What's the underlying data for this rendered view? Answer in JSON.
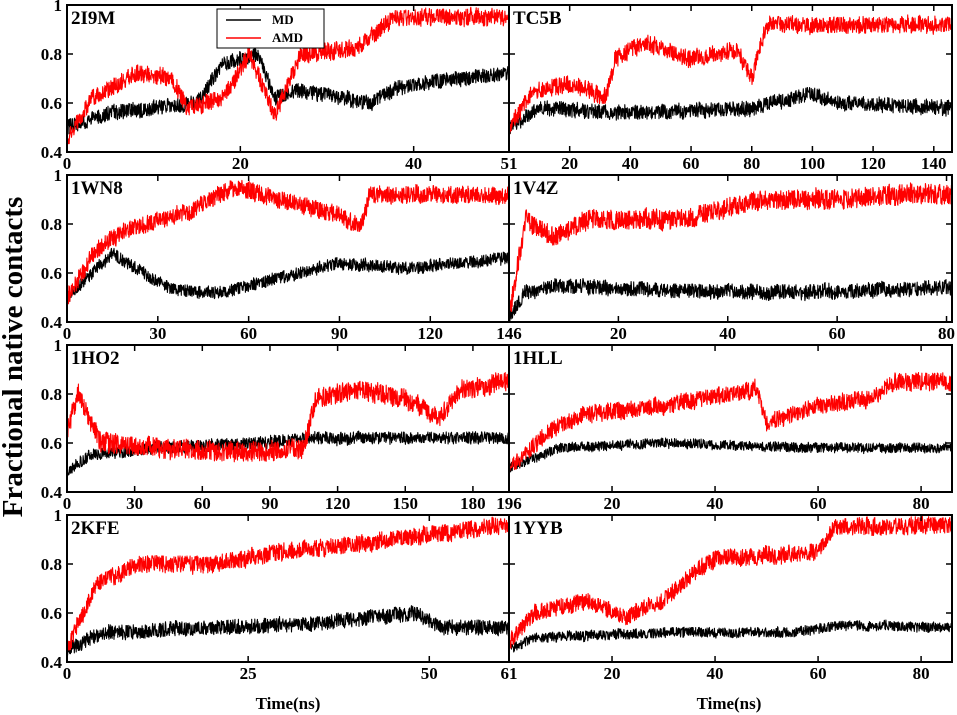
{
  "figure": {
    "ylabel": "Fractional native contacts",
    "xlabel": "Time(ns)",
    "legend": [
      {
        "name": "MD",
        "color": "#000000"
      },
      {
        "name": "AMD",
        "color": "#ff0000"
      }
    ]
  },
  "chart_data": [
    {
      "type": "line",
      "title": "2I9M",
      "xlabel": "",
      "ylabel": "",
      "xlim": [
        0,
        51
      ],
      "ylim": [
        0.4,
        1.0
      ],
      "x_ticks": [
        0,
        20,
        40,
        51
      ],
      "y_ticks": [
        0.4,
        0.6,
        0.8,
        1
      ],
      "x_tick_labels": [
        "0",
        "20",
        "40",
        "51"
      ],
      "y_tick_labels": [
        "0.4",
        "0.6",
        "0.8",
        "1"
      ],
      "legend_placement": "top",
      "series": [
        {
          "name": "MD",
          "color": "#000000",
          "noise": 0.03,
          "knots": [
            [
              0,
              0.5
            ],
            [
              5,
              0.56
            ],
            [
              10,
              0.58
            ],
            [
              15,
              0.6
            ],
            [
              18,
              0.76
            ],
            [
              22,
              0.8
            ],
            [
              24,
              0.62
            ],
            [
              27,
              0.65
            ],
            [
              35,
              0.6
            ],
            [
              38,
              0.66
            ],
            [
              45,
              0.7
            ],
            [
              51,
              0.72
            ]
          ]
        },
        {
          "name": "AMD",
          "color": "#ff0000",
          "noise": 0.035,
          "knots": [
            [
              0,
              0.45
            ],
            [
              3,
              0.62
            ],
            [
              8,
              0.72
            ],
            [
              12,
              0.7
            ],
            [
              14,
              0.58
            ],
            [
              18,
              0.62
            ],
            [
              21,
              0.8
            ],
            [
              24,
              0.55
            ],
            [
              27,
              0.8
            ],
            [
              33,
              0.82
            ],
            [
              38,
              0.95
            ],
            [
              45,
              0.95
            ],
            [
              51,
              0.95
            ]
          ]
        }
      ]
    },
    {
      "type": "line",
      "title": "TC5B",
      "xlabel": "",
      "ylabel": "",
      "xlim": [
        0,
        146
      ],
      "ylim": [
        0.4,
        1.0
      ],
      "x_ticks": [
        0,
        20,
        40,
        60,
        80,
        100,
        120,
        140
      ],
      "y_ticks": [
        0.4,
        0.6,
        0.8,
        1
      ],
      "x_tick_labels": [
        "",
        "20",
        "40",
        "60",
        "80",
        "100",
        "120",
        "140"
      ],
      "y_tick_labels": [
        "",
        "",
        "",
        ""
      ],
      "series": [
        {
          "name": "MD",
          "color": "#000000",
          "noise": 0.03,
          "knots": [
            [
              0,
              0.5
            ],
            [
              10,
              0.58
            ],
            [
              40,
              0.56
            ],
            [
              80,
              0.58
            ],
            [
              100,
              0.64
            ],
            [
              110,
              0.6
            ],
            [
              146,
              0.58
            ]
          ]
        },
        {
          "name": "AMD",
          "color": "#ff0000",
          "noise": 0.035,
          "knots": [
            [
              0,
              0.5
            ],
            [
              8,
              0.65
            ],
            [
              20,
              0.68
            ],
            [
              32,
              0.62
            ],
            [
              35,
              0.78
            ],
            [
              45,
              0.85
            ],
            [
              60,
              0.78
            ],
            [
              75,
              0.82
            ],
            [
              80,
              0.7
            ],
            [
              85,
              0.92
            ],
            [
              110,
              0.92
            ],
            [
              146,
              0.92
            ]
          ]
        }
      ]
    },
    {
      "type": "line",
      "title": "1WN8",
      "xlabel": "",
      "ylabel": "",
      "xlim": [
        0,
        146
      ],
      "ylim": [
        0.4,
        1.0
      ],
      "x_ticks": [
        0,
        30,
        60,
        90,
        120,
        146
      ],
      "y_ticks": [
        0.4,
        0.6,
        0.8,
        1
      ],
      "x_tick_labels": [
        "0",
        "30",
        "60",
        "90",
        "120",
        "146"
      ],
      "y_tick_labels": [
        "0.4",
        "0.6",
        "0.8",
        "1"
      ],
      "series": [
        {
          "name": "MD",
          "color": "#000000",
          "noise": 0.025,
          "knots": [
            [
              0,
              0.5
            ],
            [
              15,
              0.68
            ],
            [
              25,
              0.6
            ],
            [
              35,
              0.53
            ],
            [
              50,
              0.52
            ],
            [
              70,
              0.58
            ],
            [
              90,
              0.64
            ],
            [
              110,
              0.62
            ],
            [
              130,
              0.64
            ],
            [
              146,
              0.66
            ]
          ]
        },
        {
          "name": "AMD",
          "color": "#ff0000",
          "noise": 0.035,
          "knots": [
            [
              0,
              0.5
            ],
            [
              10,
              0.7
            ],
            [
              20,
              0.78
            ],
            [
              40,
              0.85
            ],
            [
              55,
              0.95
            ],
            [
              70,
              0.9
            ],
            [
              90,
              0.84
            ],
            [
              97,
              0.78
            ],
            [
              100,
              0.92
            ],
            [
              120,
              0.92
            ],
            [
              146,
              0.92
            ]
          ]
        }
      ]
    },
    {
      "type": "line",
      "title": "1V4Z",
      "xlabel": "",
      "ylabel": "",
      "xlim": [
        0,
        81
      ],
      "ylim": [
        0.4,
        1.0
      ],
      "x_ticks": [
        0,
        20,
        40,
        60,
        80
      ],
      "y_ticks": [
        0.4,
        0.6,
        0.8,
        1
      ],
      "x_tick_labels": [
        "",
        "20",
        "40",
        "60",
        "80"
      ],
      "y_tick_labels": [
        "",
        "",
        "",
        ""
      ],
      "series": [
        {
          "name": "MD",
          "color": "#000000",
          "noise": 0.03,
          "knots": [
            [
              0,
              0.42
            ],
            [
              3,
              0.52
            ],
            [
              10,
              0.55
            ],
            [
              30,
              0.53
            ],
            [
              50,
              0.52
            ],
            [
              81,
              0.54
            ]
          ]
        },
        {
          "name": "AMD",
          "color": "#ff0000",
          "noise": 0.04,
          "knots": [
            [
              0,
              0.42
            ],
            [
              3,
              0.82
            ],
            [
              8,
              0.75
            ],
            [
              15,
              0.82
            ],
            [
              30,
              0.82
            ],
            [
              38,
              0.85
            ],
            [
              45,
              0.9
            ],
            [
              60,
              0.9
            ],
            [
              70,
              0.92
            ],
            [
              81,
              0.92
            ]
          ]
        }
      ]
    },
    {
      "type": "line",
      "title": "1HO2",
      "xlabel": "",
      "ylabel": "",
      "xlim": [
        0,
        196
      ],
      "ylim": [
        0.4,
        1.0
      ],
      "x_ticks": [
        0,
        30,
        60,
        90,
        120,
        150,
        180,
        196
      ],
      "y_ticks": [
        0.4,
        0.6,
        0.8,
        1
      ],
      "x_tick_labels": [
        "0",
        "30",
        "60",
        "90",
        "120",
        "150",
        "180",
        "196"
      ],
      "y_tick_labels": [
        "0.4",
        "0.6",
        "0.8",
        "1"
      ],
      "series": [
        {
          "name": "MD",
          "color": "#000000",
          "noise": 0.025,
          "knots": [
            [
              0,
              0.48
            ],
            [
              10,
              0.55
            ],
            [
              40,
              0.58
            ],
            [
              80,
              0.6
            ],
            [
              110,
              0.62
            ],
            [
              140,
              0.62
            ],
            [
              196,
              0.62
            ]
          ]
        },
        {
          "name": "AMD",
          "color": "#ff0000",
          "noise": 0.04,
          "knots": [
            [
              0,
              0.65
            ],
            [
              5,
              0.8
            ],
            [
              15,
              0.6
            ],
            [
              40,
              0.58
            ],
            [
              80,
              0.56
            ],
            [
              105,
              0.58
            ],
            [
              110,
              0.78
            ],
            [
              130,
              0.82
            ],
            [
              150,
              0.78
            ],
            [
              165,
              0.7
            ],
            [
              175,
              0.82
            ],
            [
              196,
              0.85
            ]
          ]
        }
      ]
    },
    {
      "type": "line",
      "title": "1HLL",
      "xlabel": "",
      "ylabel": "",
      "xlim": [
        0,
        86
      ],
      "ylim": [
        0.4,
        1.0
      ],
      "x_ticks": [
        0,
        20,
        40,
        60,
        80
      ],
      "y_ticks": [
        0.4,
        0.6,
        0.8,
        1
      ],
      "x_tick_labels": [
        "",
        "20",
        "40",
        "60",
        "80"
      ],
      "y_tick_labels": [
        "",
        "",
        "",
        ""
      ],
      "series": [
        {
          "name": "MD",
          "color": "#000000",
          "noise": 0.02,
          "knots": [
            [
              0,
              0.5
            ],
            [
              10,
              0.58
            ],
            [
              30,
              0.6
            ],
            [
              60,
              0.58
            ],
            [
              86,
              0.58
            ]
          ]
        },
        {
          "name": "AMD",
          "color": "#ff0000",
          "noise": 0.035,
          "knots": [
            [
              0,
              0.5
            ],
            [
              8,
              0.65
            ],
            [
              15,
              0.72
            ],
            [
              30,
              0.75
            ],
            [
              48,
              0.82
            ],
            [
              50,
              0.68
            ],
            [
              60,
              0.75
            ],
            [
              70,
              0.78
            ],
            [
              75,
              0.85
            ],
            [
              86,
              0.85
            ]
          ]
        }
      ]
    },
    {
      "type": "line",
      "title": "2KFE",
      "xlabel": "Time(ns)",
      "ylabel": "",
      "xlim": [
        0,
        61
      ],
      "ylim": [
        0.4,
        1.0
      ],
      "x_ticks": [
        0,
        25,
        50,
        61
      ],
      "y_ticks": [
        0.4,
        0.6,
        0.8,
        1
      ],
      "x_tick_labels": [
        "0",
        "25",
        "50",
        "61"
      ],
      "y_tick_labels": [
        "0.4",
        "0.6",
        "0.8",
        "1"
      ],
      "series": [
        {
          "name": "MD",
          "color": "#000000",
          "noise": 0.03,
          "knots": [
            [
              0,
              0.45
            ],
            [
              5,
              0.52
            ],
            [
              20,
              0.54
            ],
            [
              35,
              0.56
            ],
            [
              48,
              0.6
            ],
            [
              52,
              0.54
            ],
            [
              61,
              0.54
            ]
          ]
        },
        {
          "name": "AMD",
          "color": "#ff0000",
          "noise": 0.035,
          "knots": [
            [
              0,
              0.45
            ],
            [
              4,
              0.72
            ],
            [
              10,
              0.8
            ],
            [
              20,
              0.8
            ],
            [
              30,
              0.85
            ],
            [
              40,
              0.88
            ],
            [
              50,
              0.92
            ],
            [
              61,
              0.96
            ]
          ]
        }
      ]
    },
    {
      "type": "line",
      "title": "1YYB",
      "xlabel": "Time(ns)",
      "ylabel": "",
      "xlim": [
        0,
        86
      ],
      "ylim": [
        0.4,
        1.0
      ],
      "x_ticks": [
        0,
        20,
        40,
        60,
        80
      ],
      "y_ticks": [
        0.4,
        0.6,
        0.8,
        1
      ],
      "x_tick_labels": [
        "",
        "20",
        "40",
        "60",
        "80"
      ],
      "y_tick_labels": [
        "",
        "",
        "",
        ""
      ],
      "series": [
        {
          "name": "MD",
          "color": "#000000",
          "noise": 0.02,
          "knots": [
            [
              0,
              0.45
            ],
            [
              5,
              0.5
            ],
            [
              30,
              0.52
            ],
            [
              55,
              0.52
            ],
            [
              65,
              0.55
            ],
            [
              86,
              0.54
            ]
          ]
        },
        {
          "name": "AMD",
          "color": "#ff0000",
          "noise": 0.035,
          "knots": [
            [
              0,
              0.48
            ],
            [
              5,
              0.6
            ],
            [
              15,
              0.65
            ],
            [
              22,
              0.58
            ],
            [
              30,
              0.65
            ],
            [
              35,
              0.75
            ],
            [
              40,
              0.82
            ],
            [
              60,
              0.85
            ],
            [
              63,
              0.95
            ],
            [
              86,
              0.96
            ]
          ]
        }
      ]
    }
  ]
}
